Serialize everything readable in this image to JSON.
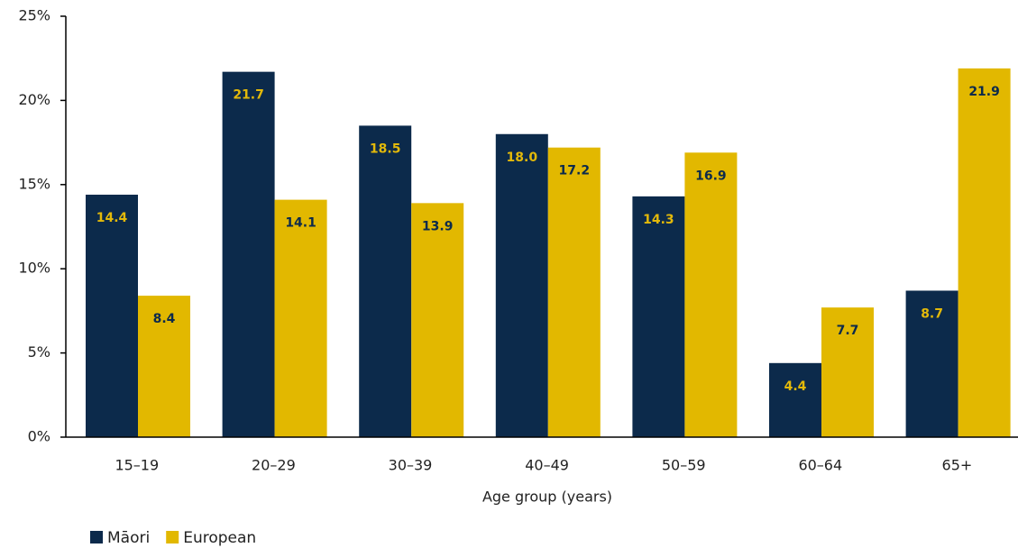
{
  "chart_data": {
    "type": "bar",
    "x_label": "Age group (years)",
    "categories": [
      "15–19",
      "20–29",
      "30–39",
      "40–49",
      "50–59",
      "60–64",
      "65+"
    ],
    "series": [
      {
        "name": "Māori",
        "color": "#0c2a4b",
        "label_color": "#e3b90a",
        "values": [
          14.4,
          21.7,
          18.5,
          18.0,
          14.3,
          4.4,
          8.7
        ],
        "value_labels": [
          "14.4",
          "21.7",
          "18.5",
          "18.0",
          "14.3",
          "4.4",
          "8.7"
        ]
      },
      {
        "name": "European",
        "color": "#e2b800",
        "label_color": "#0c2a4b",
        "values": [
          8.4,
          14.1,
          13.9,
          17.2,
          16.9,
          7.7,
          21.9
        ],
        "value_labels": [
          "8.4",
          "14.1",
          "13.9",
          "17.2",
          "16.9",
          "7.7",
          "21.9"
        ]
      }
    ],
    "ylim": [
      0,
      25
    ],
    "yticks": [
      {
        "value": 0,
        "label": "0%"
      },
      {
        "value": 5,
        "label": "5%"
      },
      {
        "value": 10,
        "label": "10%"
      },
      {
        "value": 15,
        "label": "15%"
      },
      {
        "value": 20,
        "label": "20%"
      },
      {
        "value": 25,
        "label": "25%"
      }
    ],
    "legend": "bottom-left"
  }
}
